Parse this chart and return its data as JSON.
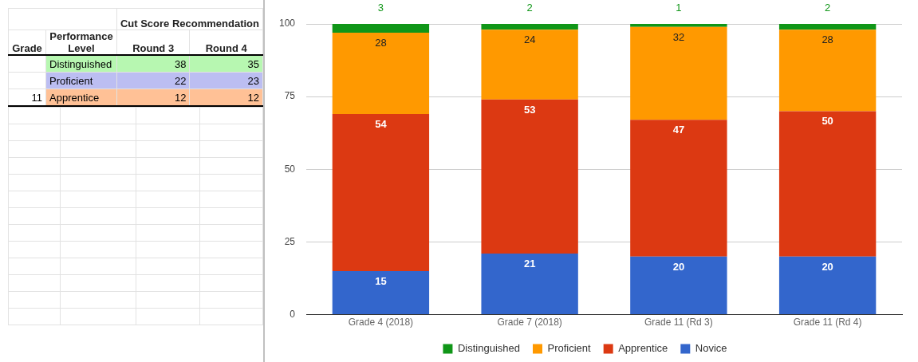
{
  "chart_data": [
    {
      "type": "other",
      "title": "Cut Score Recommendation",
      "annotations": [
        "Grade",
        "Performance Level",
        "Round 3",
        "Round 4",
        "Distinguished",
        "38",
        "35",
        "Proficient",
        "22",
        "23",
        "11",
        "Apprentice",
        "12",
        "12"
      ]
    },
    {
      "type": "bar",
      "stacked": true,
      "categories": [
        "Grade 4 (2018)",
        "Grade 7 (2018)",
        "Grade 11 (Rd 3)",
        "Grade 11 (Rd 4)"
      ],
      "series": [
        {
          "name": "Novice",
          "color": "#3366cc",
          "values": [
            15,
            21,
            20,
            20
          ]
        },
        {
          "name": "Apprentice",
          "color": "#dc3912",
          "values": [
            54,
            53,
            47,
            50
          ]
        },
        {
          "name": "Proficient",
          "color": "#ff9900",
          "values": [
            28,
            24,
            32,
            28
          ]
        },
        {
          "name": "Distinguished",
          "color": "#109618",
          "values": [
            3,
            2,
            1,
            2
          ]
        }
      ],
      "ylim": [
        0,
        100
      ],
      "yticks": [
        0,
        25,
        50,
        75,
        100
      ],
      "grid": "y",
      "legend": "bottom",
      "data_labels": true
    }
  ]
}
